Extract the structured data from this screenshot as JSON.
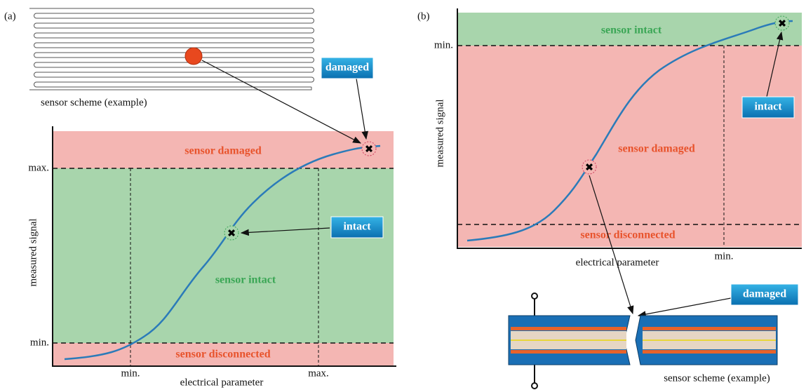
{
  "panel_a": {
    "label": "(a)",
    "scheme_caption": "sensor scheme (example)",
    "callout_damaged": "damaged",
    "callout_intact": "intact",
    "region_top": "sensor damaged",
    "region_middle": "sensor intact",
    "region_bottom": "sensor disconnected",
    "y_max": "max.",
    "y_min": "min.",
    "x_min": "min.",
    "x_max": "max.",
    "y_label": "measured signal",
    "x_label": "electrical parameter"
  },
  "panel_b": {
    "label": "(b)",
    "scheme_caption": "sensor scheme (example)",
    "callout_damaged": "damaged",
    "callout_intact": "intact",
    "region_top": "sensor intact",
    "region_middle": "sensor damaged",
    "region_bottom": "sensor disconnected",
    "y_min": "min.",
    "x_min": "min.",
    "y_label": "measured signal",
    "x_label": "electrical parameter"
  }
}
